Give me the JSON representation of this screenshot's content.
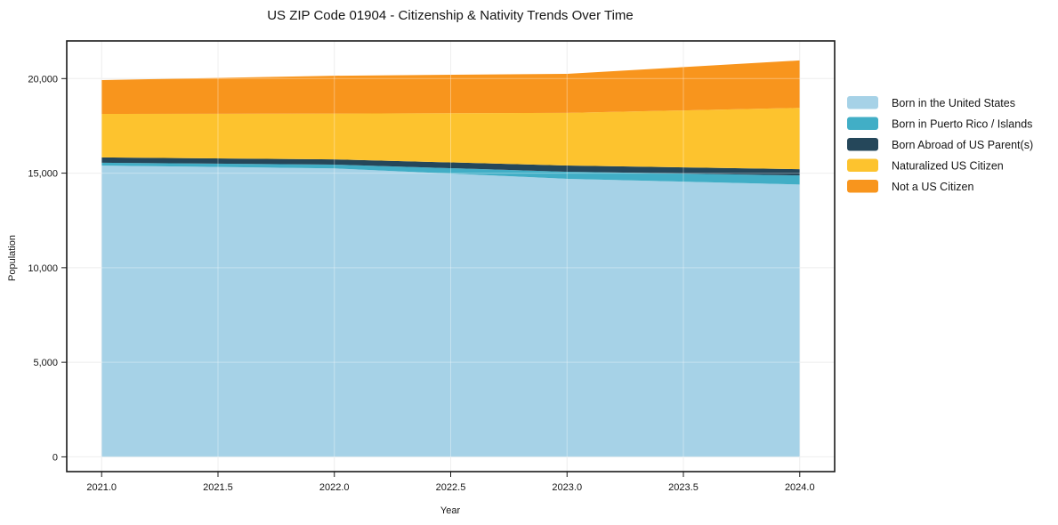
{
  "chart_data": {
    "type": "area",
    "stacked": true,
    "title": "US ZIP Code 01904 - Citizenship & Nativity Trends Over Time",
    "xlabel": "Year",
    "ylabel": "Population",
    "x": [
      2021,
      2022,
      2023,
      2024
    ],
    "series": [
      {
        "id": "born-in-us",
        "name": "Born in the United States",
        "color": "#a6d2e7",
        "values": [
          15400,
          15250,
          14700,
          14400
        ]
      },
      {
        "id": "born-in-pr",
        "name": "Born in Puerto Rico / Islands",
        "color": "#41aec6",
        "values": [
          150,
          200,
          375,
          480
        ]
      },
      {
        "id": "born-abroad",
        "name": "Born Abroad of US Parent(s)",
        "color": "#25475a",
        "values": [
          280,
          280,
          330,
          330
        ]
      },
      {
        "id": "naturalized",
        "name": "Naturalized US Citizen",
        "color": "#fdc32e",
        "values": [
          2300,
          2420,
          2780,
          3240
        ]
      },
      {
        "id": "not-citizen",
        "name": "Not a US Citizen",
        "color": "#f8951d",
        "values": [
          1790,
          2000,
          2065,
          2510
        ]
      }
    ],
    "xticks": [
      2021.0,
      2021.5,
      2022.0,
      2022.5,
      2023.0,
      2023.5,
      2024.0
    ],
    "yticks": [
      0,
      5000,
      10000,
      15000,
      20000
    ],
    "xlim": [
      2020.85,
      2024.15
    ],
    "ylim": [
      -780,
      21990
    ],
    "grid": true,
    "legend_position": "right",
    "colors": {
      "grid": "#e7e7e7",
      "grid_over_area": "rgba(255,255,255,0.35)",
      "axis": "#1a1a1a",
      "background": "#ffffff"
    }
  }
}
